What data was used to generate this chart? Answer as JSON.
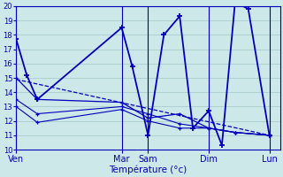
{
  "xlabel": "Température (°c)",
  "bg_color": "#cce8e8",
  "line_color": "#0000bb",
  "grid_color": "#aacccc",
  "ylim": [
    10,
    20
  ],
  "yticks": [
    10,
    11,
    12,
    13,
    14,
    15,
    16,
    17,
    18,
    19,
    20
  ],
  "xlim": [
    0,
    100
  ],
  "day_labels": [
    "Ven",
    "Mar",
    "Sam",
    "Dim",
    "Lun"
  ],
  "day_positions": [
    0,
    40,
    50,
    73,
    96
  ],
  "main_x": [
    0,
    4,
    8,
    40,
    44,
    50,
    56,
    62,
    67,
    73,
    78,
    83,
    88,
    96
  ],
  "main_y": [
    17.7,
    15.2,
    13.5,
    18.5,
    15.8,
    11.0,
    18.0,
    19.3,
    11.5,
    12.7,
    10.3,
    20.3,
    19.8,
    11.0
  ],
  "line2_x": [
    0,
    8,
    40,
    50,
    62,
    73,
    83,
    96
  ],
  "line2_y": [
    15.0,
    13.5,
    13.3,
    12.2,
    12.5,
    11.5,
    11.2,
    11.0
  ],
  "line3_x": [
    0,
    8,
    40,
    50,
    62,
    73,
    83,
    96
  ],
  "line3_y": [
    13.5,
    12.5,
    13.0,
    12.5,
    11.8,
    11.5,
    11.2,
    11.0
  ],
  "line4_x": [
    0,
    8,
    40,
    50,
    62,
    73,
    83,
    96
  ],
  "line4_y": [
    13.0,
    11.9,
    12.8,
    12.0,
    11.5,
    11.5,
    11.2,
    11.0
  ],
  "line5_x": [
    0,
    96
  ],
  "line5_y": [
    14.9,
    11.0
  ]
}
